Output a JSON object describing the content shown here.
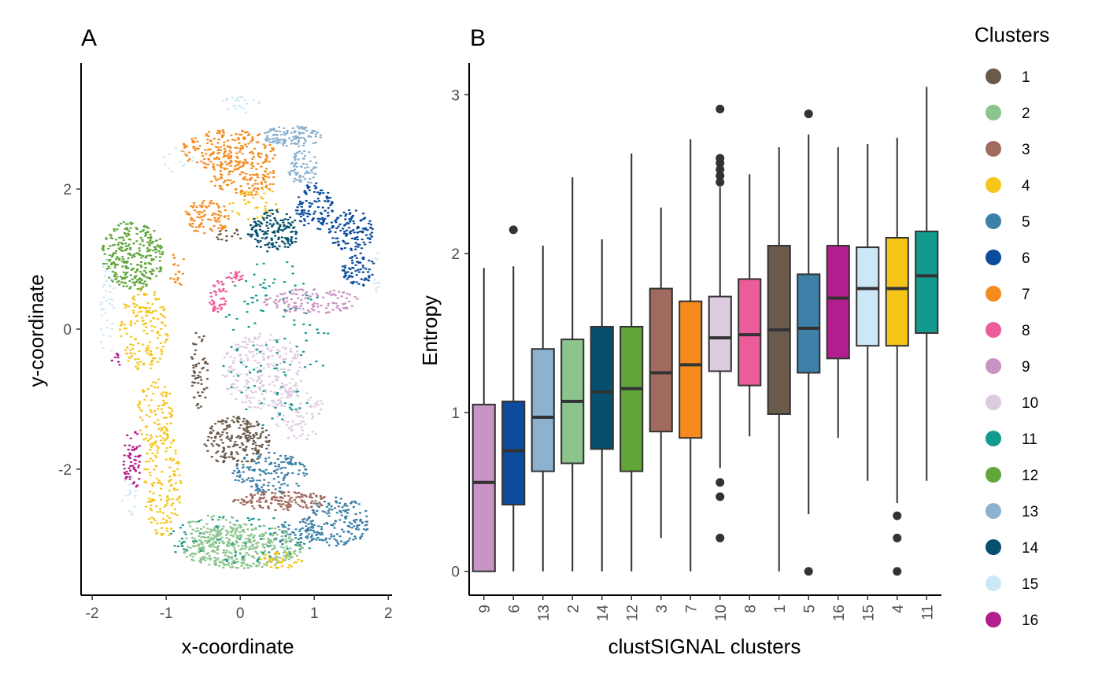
{
  "colors": {
    "1": "#6a5a4b",
    "2": "#8cc48e",
    "3": "#a06a5f",
    "4": "#f5c518",
    "5": "#3d80a8",
    "6": "#0d4c9c",
    "7": "#f58a1f",
    "8": "#eb5c9a",
    "9": "#c993c3",
    "10": "#decbe2",
    "11": "#139a8e",
    "12": "#62a63a",
    "13": "#8cb2cf",
    "14": "#06506e",
    "15": "#cce8f7",
    "16": "#b31e8e"
  },
  "panel_a": {
    "label": "A",
    "xlabel": "x-coordinate",
    "ylabel": "y-coordinate",
    "xlim": [
      -2.15,
      2.05
    ],
    "ylim": [
      -3.8,
      3.8
    ],
    "xticks": [
      -2,
      -1,
      0,
      1,
      2
    ],
    "yticks": [
      -2,
      0,
      2
    ],
    "regions": [
      {
        "cluster": "2",
        "cx": 0.0,
        "cy": -3.1,
        "rx": 0.85,
        "ry": 0.32,
        "n": 420
      },
      {
        "cluster": "2",
        "cx": -0.35,
        "cy": -2.9,
        "rx": 0.4,
        "ry": 0.3,
        "n": 90
      },
      {
        "cluster": "4",
        "cx": -1.05,
        "cy": -2.2,
        "rx": 0.25,
        "ry": 0.8,
        "n": 150
      },
      {
        "cluster": "4",
        "cx": -1.3,
        "cy": 0.0,
        "rx": 0.33,
        "ry": 0.6,
        "n": 160
      },
      {
        "cluster": "4",
        "cx": -1.15,
        "cy": -1.2,
        "rx": 0.25,
        "ry": 0.5,
        "n": 90
      },
      {
        "cluster": "4",
        "cx": 0.55,
        "cy": -3.3,
        "rx": 0.3,
        "ry": 0.12,
        "n": 40
      },
      {
        "cluster": "4",
        "cx": 0.2,
        "cy": 1.8,
        "rx": 0.35,
        "ry": 0.25,
        "n": 40
      },
      {
        "cluster": "16",
        "cx": -1.45,
        "cy": -1.85,
        "rx": 0.13,
        "ry": 0.45,
        "n": 60
      },
      {
        "cluster": "16",
        "cx": -1.68,
        "cy": -0.45,
        "rx": 0.06,
        "ry": 0.12,
        "n": 8
      },
      {
        "cluster": "12",
        "cx": -1.45,
        "cy": 1.05,
        "rx": 0.42,
        "ry": 0.5,
        "n": 300
      },
      {
        "cluster": "7",
        "cx": -0.15,
        "cy": 2.55,
        "rx": 0.65,
        "ry": 0.3,
        "n": 210
      },
      {
        "cluster": "7",
        "cx": 0.05,
        "cy": 2.15,
        "rx": 0.45,
        "ry": 0.25,
        "n": 120
      },
      {
        "cluster": "7",
        "cx": -0.45,
        "cy": 1.6,
        "rx": 0.3,
        "ry": 0.25,
        "n": 90
      },
      {
        "cluster": "7",
        "cx": -0.85,
        "cy": 0.85,
        "rx": 0.12,
        "ry": 0.25,
        "n": 20
      },
      {
        "cluster": "13",
        "cx": 0.7,
        "cy": 2.75,
        "rx": 0.4,
        "ry": 0.15,
        "n": 120
      },
      {
        "cluster": "13",
        "cx": 0.85,
        "cy": 2.3,
        "rx": 0.2,
        "ry": 0.25,
        "n": 70
      },
      {
        "cluster": "15",
        "cx": 0.0,
        "cy": 3.2,
        "rx": 0.3,
        "ry": 0.12,
        "n": 25
      },
      {
        "cluster": "15",
        "cx": -0.85,
        "cy": 2.4,
        "rx": 0.25,
        "ry": 0.2,
        "n": 15
      },
      {
        "cluster": "15",
        "cx": -1.8,
        "cy": 0.3,
        "rx": 0.1,
        "ry": 0.8,
        "n": 40
      },
      {
        "cluster": "15",
        "cx": -1.5,
        "cy": -2.4,
        "rx": 0.1,
        "ry": 0.3,
        "n": 15
      },
      {
        "cluster": "15",
        "cx": 1.85,
        "cy": 0.8,
        "rx": 0.05,
        "ry": 0.3,
        "n": 10
      },
      {
        "cluster": "6",
        "cx": 1.0,
        "cy": 1.75,
        "rx": 0.25,
        "ry": 0.35,
        "n": 110
      },
      {
        "cluster": "6",
        "cx": 1.5,
        "cy": 1.4,
        "rx": 0.3,
        "ry": 0.3,
        "n": 120
      },
      {
        "cluster": "6",
        "cx": 1.6,
        "cy": 0.85,
        "rx": 0.22,
        "ry": 0.25,
        "n": 70
      },
      {
        "cluster": "14",
        "cx": 0.45,
        "cy": 1.4,
        "rx": 0.35,
        "ry": 0.3,
        "n": 150
      },
      {
        "cluster": "9",
        "cx": 0.95,
        "cy": 0.4,
        "rx": 0.65,
        "ry": 0.18,
        "n": 130
      },
      {
        "cluster": "8",
        "cx": -0.3,
        "cy": 0.45,
        "rx": 0.12,
        "ry": 0.25,
        "n": 45
      },
      {
        "cluster": "8",
        "cx": -0.05,
        "cy": 0.75,
        "rx": 0.15,
        "ry": 0.08,
        "n": 20
      },
      {
        "cluster": "10",
        "cx": 0.3,
        "cy": -0.6,
        "rx": 0.55,
        "ry": 0.55,
        "n": 260
      },
      {
        "cluster": "10",
        "cx": 0.8,
        "cy": -1.2,
        "rx": 0.35,
        "ry": 0.4,
        "n": 90
      },
      {
        "cluster": "11",
        "cx": 0.45,
        "cy": -0.2,
        "rx": 0.75,
        "ry": 1.2,
        "n": 120
      },
      {
        "cluster": "11",
        "cx": 0.0,
        "cy": -3.0,
        "rx": 1.1,
        "ry": 0.35,
        "n": 70
      },
      {
        "cluster": "1",
        "cx": -0.05,
        "cy": -1.6,
        "rx": 0.45,
        "ry": 0.35,
        "n": 210
      },
      {
        "cluster": "1",
        "cx": -0.55,
        "cy": -0.6,
        "rx": 0.12,
        "ry": 0.6,
        "n": 60
      },
      {
        "cluster": "1",
        "cx": -0.15,
        "cy": 1.35,
        "rx": 0.2,
        "ry": 0.12,
        "n": 15
      },
      {
        "cluster": "5",
        "cx": 0.4,
        "cy": -2.05,
        "rx": 0.5,
        "ry": 0.3,
        "n": 150
      },
      {
        "cluster": "5",
        "cx": 1.3,
        "cy": -2.75,
        "rx": 0.45,
        "ry": 0.35,
        "n": 170
      },
      {
        "cluster": "5",
        "cx": 0.75,
        "cy": -2.9,
        "rx": 0.3,
        "ry": 0.2,
        "n": 50
      },
      {
        "cluster": "3",
        "cx": 0.55,
        "cy": -2.45,
        "rx": 0.65,
        "ry": 0.14,
        "n": 150
      }
    ]
  },
  "chart_data": {
    "type": "box",
    "label": "B",
    "xlabel": "clustSIGNAL clusters",
    "ylabel": "Entropy",
    "ylim": [
      -0.15,
      3.2
    ],
    "yticks": [
      0,
      1,
      2,
      3
    ],
    "categories": [
      "9",
      "6",
      "13",
      "2",
      "14",
      "12",
      "3",
      "7",
      "10",
      "8",
      "1",
      "5",
      "16",
      "15",
      "4",
      "11"
    ],
    "boxes": [
      {
        "cluster": "9",
        "min": 0.0,
        "q1": 0.0,
        "median": 0.56,
        "q3": 1.05,
        "max": 1.91,
        "outliers": []
      },
      {
        "cluster": "6",
        "min": 0.0,
        "q1": 0.42,
        "median": 0.76,
        "q3": 1.07,
        "max": 1.92,
        "outliers": [
          2.15
        ]
      },
      {
        "cluster": "13",
        "min": 0.0,
        "q1": 0.63,
        "median": 0.97,
        "q3": 1.4,
        "max": 2.05,
        "outliers": []
      },
      {
        "cluster": "2",
        "min": 0.0,
        "q1": 0.68,
        "median": 1.07,
        "q3": 1.46,
        "max": 2.48,
        "outliers": []
      },
      {
        "cluster": "14",
        "min": 0.0,
        "q1": 0.77,
        "median": 1.13,
        "q3": 1.54,
        "max": 2.09,
        "outliers": []
      },
      {
        "cluster": "12",
        "min": 0.0,
        "q1": 0.63,
        "median": 1.15,
        "q3": 1.54,
        "max": 2.63,
        "outliers": []
      },
      {
        "cluster": "3",
        "min": 0.21,
        "q1": 0.88,
        "median": 1.25,
        "q3": 1.78,
        "max": 2.29,
        "outliers": []
      },
      {
        "cluster": "7",
        "min": 0.0,
        "q1": 0.84,
        "median": 1.3,
        "q3": 1.7,
        "max": 2.72,
        "outliers": []
      },
      {
        "cluster": "10",
        "min": 0.65,
        "q1": 1.26,
        "median": 1.47,
        "q3": 1.73,
        "max": 2.42,
        "outliers": [
          0.56,
          0.47,
          0.21,
          2.45,
          2.49,
          2.53,
          2.57,
          2.6,
          2.91
        ]
      },
      {
        "cluster": "8",
        "min": 0.85,
        "q1": 1.17,
        "median": 1.49,
        "q3": 1.84,
        "max": 2.5,
        "outliers": []
      },
      {
        "cluster": "1",
        "min": 0.0,
        "q1": 0.99,
        "median": 1.52,
        "q3": 2.05,
        "max": 2.67,
        "outliers": []
      },
      {
        "cluster": "5",
        "min": 0.36,
        "q1": 1.25,
        "median": 1.53,
        "q3": 1.87,
        "max": 2.75,
        "outliers": [
          0.0,
          2.88
        ]
      },
      {
        "cluster": "16",
        "min": 0.84,
        "q1": 1.34,
        "median": 1.72,
        "q3": 2.05,
        "max": 2.67,
        "outliers": []
      },
      {
        "cluster": "15",
        "min": 0.57,
        "q1": 1.42,
        "median": 1.78,
        "q3": 2.04,
        "max": 2.69,
        "outliers": []
      },
      {
        "cluster": "4",
        "min": 0.43,
        "q1": 1.42,
        "median": 1.78,
        "q3": 2.1,
        "max": 2.73,
        "outliers": [
          0.35,
          0.21,
          0.0
        ]
      },
      {
        "cluster": "11",
        "min": 0.57,
        "q1": 1.5,
        "median": 1.86,
        "q3": 2.14,
        "max": 3.05,
        "outliers": []
      }
    ]
  },
  "legend": {
    "title": "Clusters",
    "items": [
      "1",
      "2",
      "3",
      "4",
      "5",
      "6",
      "7",
      "8",
      "9",
      "10",
      "11",
      "12",
      "13",
      "14",
      "15",
      "16"
    ]
  }
}
